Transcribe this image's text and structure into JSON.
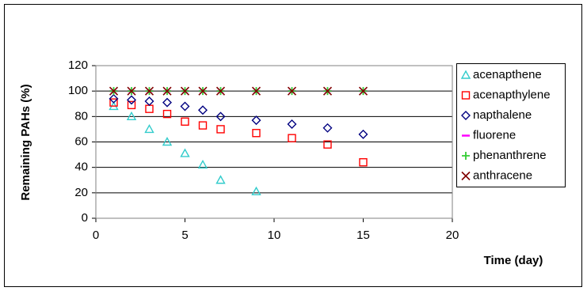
{
  "chart_data": {
    "type": "scatter",
    "y_label": "Remaining PAHs (%)",
    "x_label": "Time (day)",
    "xlim": [
      0,
      20
    ],
    "xticks": [
      0,
      5,
      10,
      15,
      20
    ],
    "ylim": [
      0,
      120
    ],
    "yticks": [
      0,
      20,
      40,
      60,
      80,
      100,
      120
    ],
    "grid": true,
    "legend": "right",
    "series": [
      {
        "name": "acenapthene",
        "color": "#33cccc",
        "marker": "triangle",
        "x": [
          1,
          2,
          3,
          4,
          5,
          6,
          7,
          9
        ],
        "values": [
          88,
          80,
          70,
          60,
          51,
          42,
          30,
          21
        ]
      },
      {
        "name": "acenapthylene",
        "color": "#ff0000",
        "marker": "square",
        "x": [
          1,
          2,
          3,
          4,
          5,
          6,
          7,
          9,
          11,
          13,
          15
        ],
        "values": [
          91,
          89,
          86,
          82,
          76,
          73,
          70,
          67,
          63,
          58,
          44
        ]
      },
      {
        "name": "napthalene",
        "color": "#000080",
        "marker": "diamond",
        "x": [
          1,
          2,
          3,
          4,
          5,
          6,
          7,
          9,
          11,
          13,
          15
        ],
        "values": [
          94,
          93,
          92,
          91,
          88,
          85,
          80,
          77,
          74,
          71,
          66
        ]
      },
      {
        "name": "fluorene",
        "color": "#ff00ff",
        "marker": "dash",
        "x": [
          1,
          2,
          3,
          4,
          5,
          6,
          7,
          9,
          11,
          13,
          15
        ],
        "values": [
          100,
          100,
          100,
          100,
          100,
          100,
          100,
          100,
          100,
          100,
          100
        ]
      },
      {
        "name": "phenanthrene",
        "color": "#33cc33",
        "marker": "plus",
        "x": [
          1,
          2,
          3,
          4,
          5,
          6,
          7,
          9,
          11,
          13,
          15
        ],
        "values": [
          100,
          100,
          100,
          100,
          100,
          100,
          100,
          100,
          100,
          100,
          100
        ]
      },
      {
        "name": "anthracene",
        "color": "#800000",
        "marker": "cross",
        "x": [
          1,
          2,
          3,
          4,
          5,
          6,
          7,
          9,
          11,
          13,
          15
        ],
        "values": [
          100,
          100,
          100,
          100,
          100,
          100,
          100,
          100,
          100,
          100,
          100
        ]
      }
    ]
  }
}
